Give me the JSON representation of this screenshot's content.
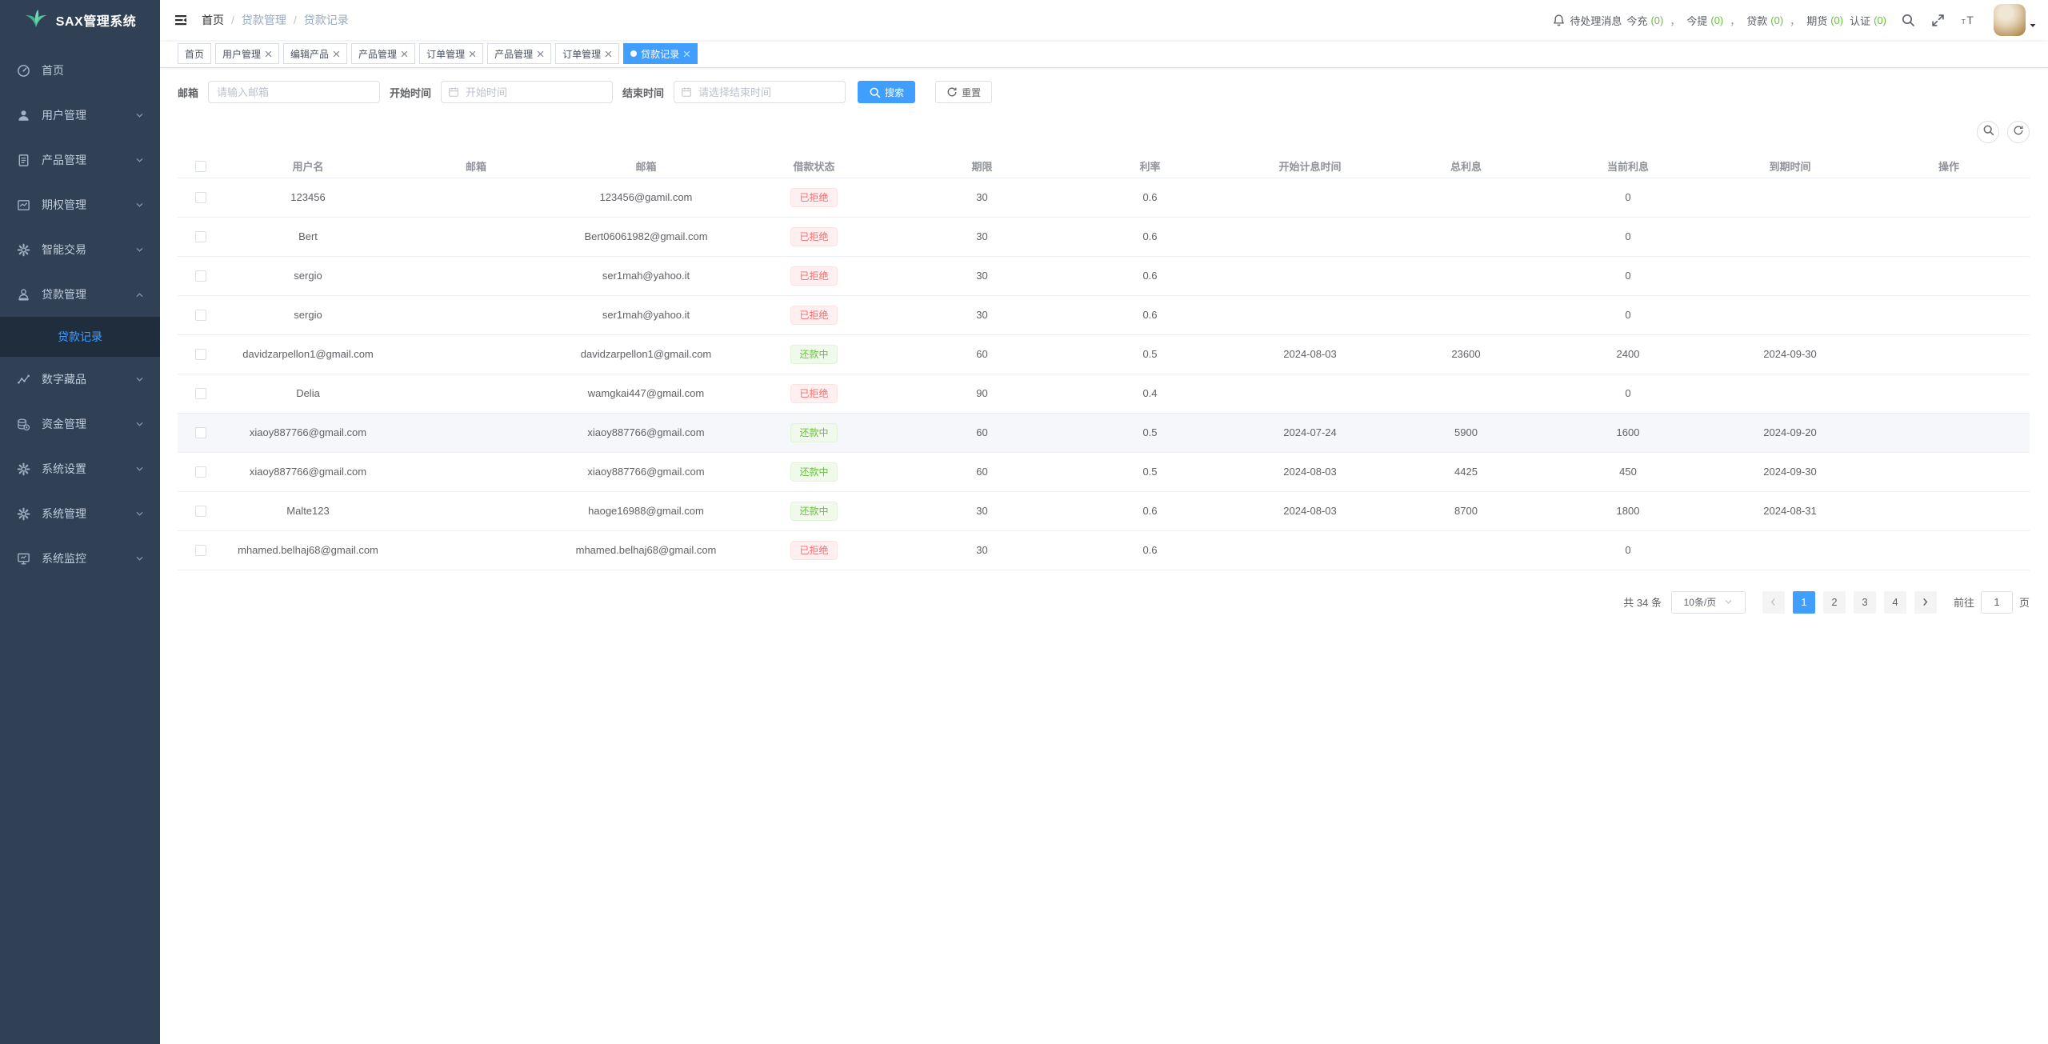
{
  "app": {
    "title": "SAX管理系统"
  },
  "colors": {
    "accent": "#409eff",
    "success": "#67c23a",
    "danger": "#f56c6c",
    "sidebar_bg": "#304156",
    "sidebar_active_bg": "#1f2d3d",
    "logo_teal": "#4fc3a1"
  },
  "sidebar": {
    "items": [
      {
        "label": "首页",
        "icon": "dashboard-icon"
      },
      {
        "label": "用户管理",
        "icon": "user-icon",
        "chevron": "down"
      },
      {
        "label": "产品管理",
        "icon": "document-icon",
        "chevron": "down"
      },
      {
        "label": "期权管理",
        "icon": "option-chart-icon",
        "chevron": "down"
      },
      {
        "label": "智能交易",
        "icon": "smart-trade-icon",
        "chevron": "down"
      },
      {
        "label": "贷款管理",
        "icon": "loan-icon",
        "chevron": "up",
        "children": [
          {
            "label": "贷款记录",
            "active": true
          }
        ]
      },
      {
        "label": "数字藏品",
        "icon": "nft-icon",
        "chevron": "down"
      },
      {
        "label": "资金管理",
        "icon": "funds-icon",
        "chevron": "down"
      },
      {
        "label": "系统设置",
        "icon": "settings-icon",
        "chevron": "down"
      },
      {
        "label": "系统管理",
        "icon": "system-icon",
        "chevron": "down"
      },
      {
        "label": "系统监控",
        "icon": "monitor-icon",
        "chevron": "down"
      }
    ]
  },
  "navbar": {
    "breadcrumb": [
      "首页",
      "贷款管理",
      "贷款记录"
    ],
    "breadcrumb_separator": "/",
    "notice": {
      "label": "待处理消息",
      "separator": "，",
      "items": [
        {
          "label": "今充",
          "count": "(0)",
          "sep": true
        },
        {
          "label": "今提",
          "count": "(0)",
          "sep": true
        },
        {
          "label": "贷款",
          "count": "(0)",
          "sep": true
        },
        {
          "label": "期货",
          "count": "(0)",
          "sep": false
        },
        {
          "label": "认证",
          "count": "(0)",
          "sep": false
        }
      ]
    }
  },
  "tabs": [
    {
      "label": "首页",
      "closable": false,
      "active": false
    },
    {
      "label": "用户管理",
      "closable": true,
      "active": false
    },
    {
      "label": "编辑产品",
      "closable": true,
      "active": false
    },
    {
      "label": "产品管理",
      "closable": true,
      "active": false
    },
    {
      "label": "订单管理",
      "closable": true,
      "active": false
    },
    {
      "label": "产品管理",
      "closable": true,
      "active": false
    },
    {
      "label": "订单管理",
      "closable": true,
      "active": false
    },
    {
      "label": "贷款记录",
      "closable": true,
      "active": true
    }
  ],
  "filters": {
    "email_label": "邮箱",
    "email_placeholder": "请输入邮箱",
    "start_label": "开始时间",
    "start_placeholder": "开始时间",
    "end_label": "结束时间",
    "end_placeholder": "请选择结束时间",
    "search_label": "搜索",
    "reset_label": "重置"
  },
  "table": {
    "columns": [
      "用户名",
      "邮箱",
      "邮箱",
      "借款状态",
      "期限",
      "利率",
      "开始计息时间",
      "总利息",
      "当前利息",
      "到期时间",
      "操作"
    ],
    "status_styles": {
      "已拒绝": "danger",
      "还款中": "success"
    },
    "rows": [
      {
        "username": "123456",
        "email1": "",
        "email2": "123456@gamil.com",
        "status": "已拒绝",
        "term": "30",
        "rate": "0.6",
        "interest_start": "",
        "total_interest": "",
        "current_interest": "0",
        "due_date": ""
      },
      {
        "username": "Bert",
        "email1": "",
        "email2": "Bert06061982@gmail.com",
        "status": "已拒绝",
        "term": "30",
        "rate": "0.6",
        "interest_start": "",
        "total_interest": "",
        "current_interest": "0",
        "due_date": ""
      },
      {
        "username": "sergio",
        "email1": "",
        "email2": "ser1mah@yahoo.it",
        "status": "已拒绝",
        "term": "30",
        "rate": "0.6",
        "interest_start": "",
        "total_interest": "",
        "current_interest": "0",
        "due_date": ""
      },
      {
        "username": "sergio",
        "email1": "",
        "email2": "ser1mah@yahoo.it",
        "status": "已拒绝",
        "term": "30",
        "rate": "0.6",
        "interest_start": "",
        "total_interest": "",
        "current_interest": "0",
        "due_date": ""
      },
      {
        "username": "davidzarpellon1@gmail.com",
        "email1": "",
        "email2": "davidzarpellon1@gmail.com",
        "status": "还款中",
        "term": "60",
        "rate": "0.5",
        "interest_start": "2024-08-03",
        "total_interest": "23600",
        "current_interest": "2400",
        "due_date": "2024-09-30"
      },
      {
        "username": "Delia",
        "email1": "",
        "email2": "wamgkai447@gmail.com",
        "status": "已拒绝",
        "term": "90",
        "rate": "0.4",
        "interest_start": "",
        "total_interest": "",
        "current_interest": "0",
        "due_date": ""
      },
      {
        "username": "xiaoy887766@gmail.com",
        "email1": "",
        "email2": "xiaoy887766@gmail.com",
        "status": "还款中",
        "term": "60",
        "rate": "0.5",
        "interest_start": "2024-07-24",
        "total_interest": "5900",
        "current_interest": "1600",
        "due_date": "2024-09-20",
        "highlighted": true
      },
      {
        "username": "xiaoy887766@gmail.com",
        "email1": "",
        "email2": "xiaoy887766@gmail.com",
        "status": "还款中",
        "term": "60",
        "rate": "0.5",
        "interest_start": "2024-08-03",
        "total_interest": "4425",
        "current_interest": "450",
        "due_date": "2024-09-30"
      },
      {
        "username": "Malte123",
        "email1": "",
        "email2": "haoge16988@gmail.com",
        "status": "还款中",
        "term": "30",
        "rate": "0.6",
        "interest_start": "2024-08-03",
        "total_interest": "8700",
        "current_interest": "1800",
        "due_date": "2024-08-31"
      },
      {
        "username": "mhamed.belhaj68@gmail.com",
        "email1": "",
        "email2": "mhamed.belhaj68@gmail.com",
        "status": "已拒绝",
        "term": "30",
        "rate": "0.6",
        "interest_start": "",
        "total_interest": "",
        "current_interest": "0",
        "due_date": ""
      }
    ]
  },
  "pagination": {
    "total_label": "共 34 条",
    "page_size": "10条/页",
    "pages": [
      "1",
      "2",
      "3",
      "4"
    ],
    "active_page": "1",
    "jump_prefix": "前往",
    "jump_value": "1",
    "jump_suffix": "页"
  }
}
